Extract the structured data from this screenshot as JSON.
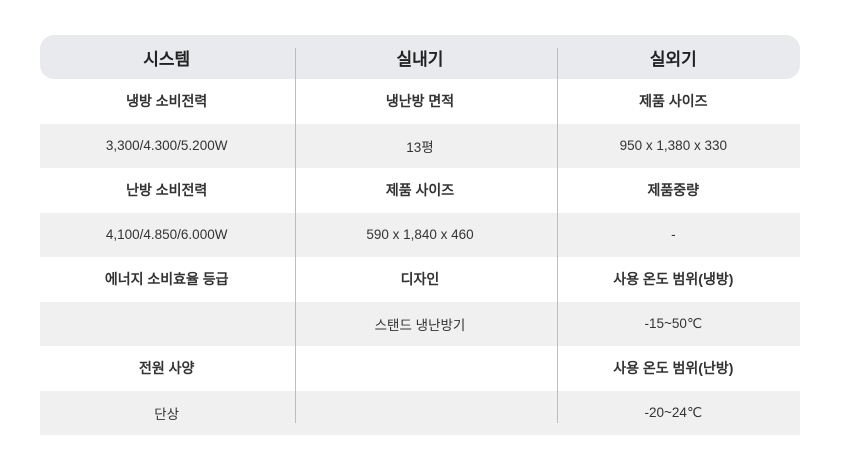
{
  "columns": [
    "시스템",
    "실내기",
    "실외기"
  ],
  "rows": [
    {
      "type": "label",
      "cells": [
        "냉방 소비전력",
        "냉난방 면적",
        "제품 사이즈"
      ]
    },
    {
      "type": "value",
      "cells": [
        "3,300/4.300/5.200W",
        "13평",
        "950 x 1,380 x 330"
      ]
    },
    {
      "type": "label",
      "cells": [
        "난방 소비전력",
        "제품 사이즈",
        "제품중량"
      ]
    },
    {
      "type": "value",
      "cells": [
        "4,100/4.850/6.000W",
        "590 x 1,840 x 460",
        "-"
      ]
    },
    {
      "type": "label",
      "cells": [
        "에너지 소비효율 등급",
        "디자인",
        "사용 온도 범위(냉방)"
      ]
    },
    {
      "type": "value",
      "cells": [
        "",
        "스탠드 냉난방기",
        "-15~50℃"
      ]
    },
    {
      "type": "label",
      "cells": [
        "전원 사양",
        "",
        "사용 온도 범위(난방)"
      ]
    },
    {
      "type": "value",
      "cells": [
        "단상",
        "",
        "-20~24℃"
      ]
    }
  ]
}
